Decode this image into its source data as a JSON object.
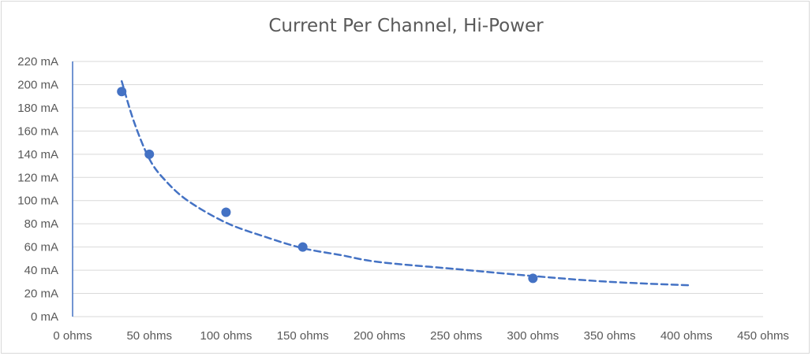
{
  "chart_data": {
    "type": "scatter",
    "title": "Current Per Channel, Hi-Power",
    "xlabel": "",
    "ylabel": "",
    "xlim": [
      0,
      450
    ],
    "ylim": [
      0,
      220
    ],
    "x_ticks": [
      {
        "value": 0,
        "label": "0 ohms"
      },
      {
        "value": 50,
        "label": "50 ohms"
      },
      {
        "value": 100,
        "label": "100 ohms"
      },
      {
        "value": 150,
        "label": "150 ohms"
      },
      {
        "value": 200,
        "label": "200 ohms"
      },
      {
        "value": 250,
        "label": "250 ohms"
      },
      {
        "value": 300,
        "label": "300 ohms"
      },
      {
        "value": 350,
        "label": "350 ohms"
      },
      {
        "value": 400,
        "label": "400 ohms"
      },
      {
        "value": 450,
        "label": "450 ohms"
      }
    ],
    "y_ticks": [
      {
        "value": 0,
        "label": "0 mA"
      },
      {
        "value": 20,
        "label": "20 mA"
      },
      {
        "value": 40,
        "label": "40 mA"
      },
      {
        "value": 60,
        "label": "60 mA"
      },
      {
        "value": 80,
        "label": "80 mA"
      },
      {
        "value": 100,
        "label": "100 mA"
      },
      {
        "value": 120,
        "label": "120 mA"
      },
      {
        "value": 140,
        "label": "140 mA"
      },
      {
        "value": 160,
        "label": "160 mA"
      },
      {
        "value": 180,
        "label": "180 mA"
      },
      {
        "value": 200,
        "label": "200 mA"
      },
      {
        "value": 220,
        "label": "220 mA"
      }
    ],
    "grid": true,
    "legend": "none",
    "series": [
      {
        "points": [
          {
            "x": 32,
            "y": 194
          },
          {
            "x": 50,
            "y": 140
          },
          {
            "x": 100,
            "y": 90
          },
          {
            "x": 150,
            "y": 60
          },
          {
            "x": 300,
            "y": 33
          }
        ],
        "color": "#4472C4"
      }
    ],
    "trendline": {
      "style": "dashed",
      "color": "#4472C4",
      "x_range": [
        32,
        402
      ],
      "points": [
        {
          "x": 32,
          "y": 203
        },
        {
          "x": 40,
          "y": 168
        },
        {
          "x": 50,
          "y": 136
        },
        {
          "x": 60,
          "y": 118
        },
        {
          "x": 75,
          "y": 100
        },
        {
          "x": 100,
          "y": 81
        },
        {
          "x": 125,
          "y": 69
        },
        {
          "x": 150,
          "y": 59
        },
        {
          "x": 175,
          "y": 53
        },
        {
          "x": 200,
          "y": 47
        },
        {
          "x": 250,
          "y": 41
        },
        {
          "x": 300,
          "y": 35
        },
        {
          "x": 350,
          "y": 30
        },
        {
          "x": 402,
          "y": 27
        }
      ]
    }
  }
}
